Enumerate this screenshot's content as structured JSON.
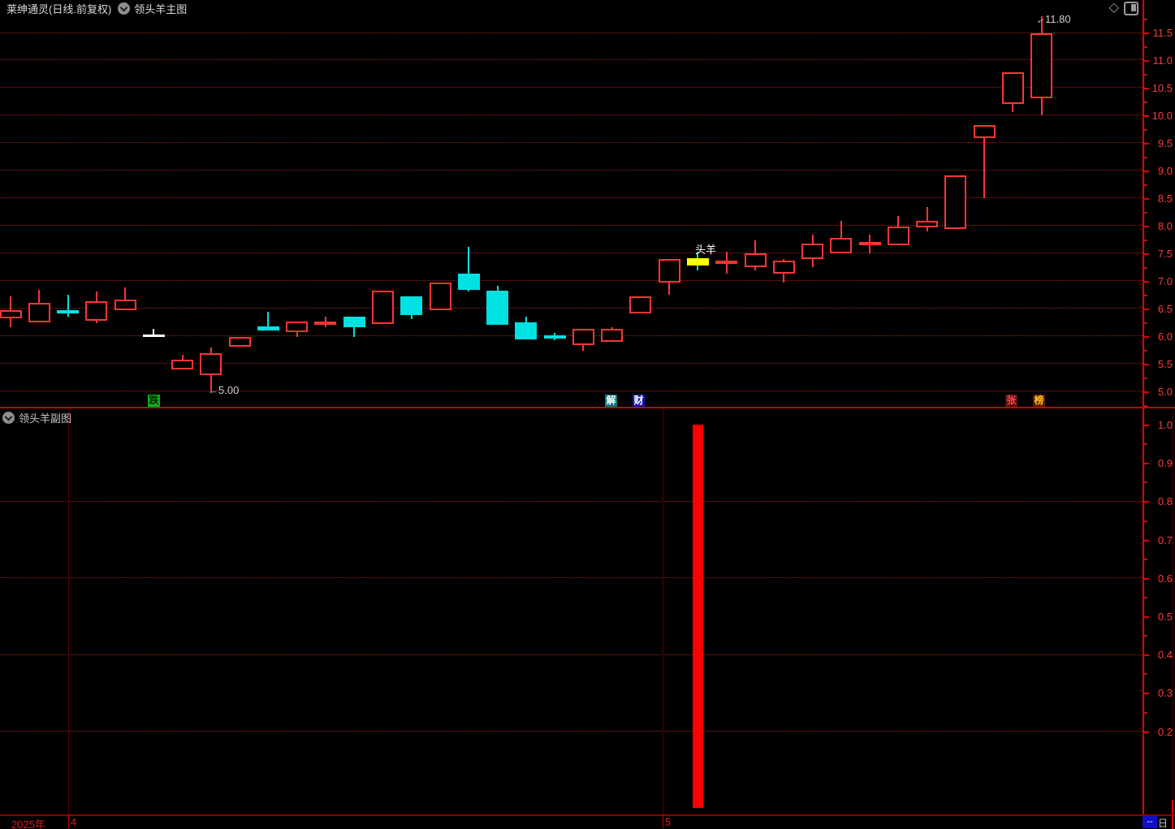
{
  "window": {
    "title": "莱绅通灵(日线.前复权)",
    "main_indicator": "领头羊主图",
    "sub_indicator": "领头羊副图",
    "period_box": "--",
    "period_label": "日线"
  },
  "main_chart": {
    "y_axis_labels": [
      "11.5",
      "11.0",
      "10.5",
      "10.0",
      "9.5",
      "9.0",
      "8.5",
      "8.0",
      "7.5",
      "7.0",
      "6.5",
      "6.0",
      "5.5",
      "5.0"
    ],
    "annotations": {
      "low_arrow": "←",
      "low_value": "5.00",
      "high_arrow": "←",
      "high_value": "11.80",
      "signal_label": "头羊"
    },
    "event_labels": [
      {
        "text": "跌",
        "fg": "#002200",
        "bg": "#00b41e"
      },
      {
        "text": "解",
        "fg": "#ffffff",
        "bg": "#00787d"
      },
      {
        "text": "财",
        "fg": "#ffffff",
        "bg": "#1515b4"
      },
      {
        "text": "张",
        "fg": "#ff4646",
        "bg": "#5a1010"
      },
      {
        "text": "榜",
        "fg": "#ffc41e",
        "bg": "#5a1c0a"
      }
    ],
    "chart_data": {
      "type": "candlestick",
      "ylim": [
        5.0,
        11.5
      ],
      "grid": "dotted-horizontal-every-0.5",
      "note": "o,h,l,c,kind  kind: u=red hollow up, d=cyan filled down, w=white doji, y=yellow highlighted signal candle",
      "candles": [
        [
          6.32,
          6.72,
          6.16,
          6.47,
          "u"
        ],
        [
          6.25,
          6.84,
          6.25,
          6.6,
          "u"
        ],
        [
          6.47,
          6.74,
          6.35,
          6.41,
          "d"
        ],
        [
          6.28,
          6.8,
          6.23,
          6.62,
          "u"
        ],
        [
          6.47,
          6.87,
          6.47,
          6.65,
          "u"
        ],
        [
          6.01,
          6.13,
          5.98,
          6.02,
          "w"
        ],
        [
          5.39,
          5.66,
          5.39,
          5.57,
          "u"
        ],
        [
          5.29,
          5.79,
          5.0,
          5.69,
          "u"
        ],
        [
          5.8,
          5.98,
          5.8,
          5.98,
          "u"
        ],
        [
          6.17,
          6.43,
          6.09,
          6.09,
          "d"
        ],
        [
          6.07,
          6.26,
          5.98,
          6.26,
          "u"
        ],
        [
          6.2,
          6.35,
          6.15,
          6.26,
          "u"
        ],
        [
          6.35,
          6.35,
          5.98,
          6.16,
          "d"
        ],
        [
          6.22,
          6.82,
          6.22,
          6.82,
          "u"
        ],
        [
          6.71,
          6.71,
          6.31,
          6.37,
          "d"
        ],
        [
          6.46,
          6.97,
          6.46,
          6.97,
          "u"
        ],
        [
          7.13,
          7.61,
          6.8,
          6.84,
          "d"
        ],
        [
          6.82,
          6.91,
          6.2,
          6.2,
          "d"
        ],
        [
          6.25,
          6.35,
          5.94,
          5.94,
          "d"
        ],
        [
          6.01,
          6.06,
          5.92,
          5.95,
          "d"
        ],
        [
          5.83,
          6.12,
          5.73,
          6.12,
          "u"
        ],
        [
          5.89,
          6.16,
          5.89,
          6.12,
          "u"
        ],
        [
          6.4,
          6.71,
          6.4,
          6.71,
          "u"
        ],
        [
          6.97,
          7.39,
          6.74,
          7.39,
          "u"
        ],
        [
          7.27,
          7.52,
          7.19,
          7.4,
          "y"
        ],
        [
          7.3,
          7.53,
          7.13,
          7.36,
          "u"
        ],
        [
          7.25,
          7.73,
          7.18,
          7.49,
          "u"
        ],
        [
          7.13,
          7.39,
          6.97,
          7.36,
          "u"
        ],
        [
          7.39,
          7.83,
          7.24,
          7.67,
          "u"
        ],
        [
          7.49,
          8.08,
          7.49,
          7.78,
          "u"
        ],
        [
          7.64,
          7.83,
          7.49,
          7.7,
          "u"
        ],
        [
          7.64,
          8.17,
          7.64,
          7.98,
          "u"
        ],
        [
          7.96,
          8.33,
          7.89,
          8.09,
          "u"
        ],
        [
          7.93,
          8.91,
          7.93,
          8.91,
          "u"
        ],
        [
          9.59,
          9.82,
          8.49,
          9.82,
          "u"
        ],
        [
          10.21,
          10.78,
          10.05,
          10.78,
          "u"
        ],
        [
          10.3,
          11.8,
          10.0,
          11.48,
          "u"
        ]
      ],
      "signal_candle_index": 24
    }
  },
  "sub_chart": {
    "y_axis_labels": [
      "1.0",
      "0.9",
      "0.8",
      "0.7",
      "0.6",
      "0.5",
      "0.4",
      "0.3",
      "0.2"
    ],
    "chart_data": {
      "type": "bar",
      "ylim": [
        0,
        1.0
      ],
      "grid_values": [
        0.8,
        0.6,
        0.4,
        0.2
      ],
      "bars": [
        {
          "index": 24,
          "value": 1.0,
          "color": "#ff0000"
        }
      ]
    }
  },
  "x_axis": {
    "year_label": "2025年",
    "month_labels": [
      "4",
      "5"
    ]
  },
  "colors": {
    "up": "#ff3434",
    "down": "#00e2e2",
    "doji_white": "#ffffff",
    "highlight": "#ffff00",
    "axis_line": "#e60000",
    "axis_text": "#ff3b3b",
    "grid": "#a02020",
    "divider": "#c80000",
    "dark_red": "#5c0000",
    "bar_red": "#ff0000"
  }
}
